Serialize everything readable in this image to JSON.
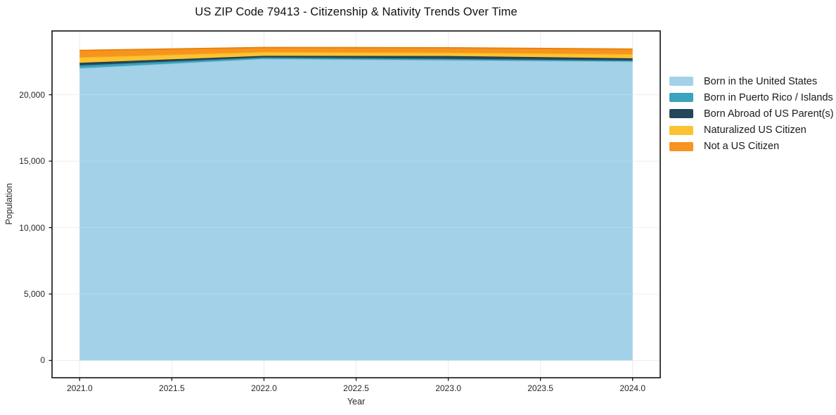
{
  "chart_data": {
    "type": "area",
    "stacked": true,
    "title": "US ZIP Code 79413 - Citizenship & Nativity Trends Over Time",
    "xlabel": "Year",
    "ylabel": "Population",
    "x": [
      2021,
      2022,
      2023,
      2024
    ],
    "series": [
      {
        "name": "Born in the United States",
        "values": [
          22000,
          22700,
          22600,
          22500
        ],
        "color": "#a3d1e8",
        "edge": "#8ec3dd"
      },
      {
        "name": "Born in Puerto Rico / Islands",
        "values": [
          210,
          110,
          105,
          80
        ],
        "color": "#3ba3be",
        "edge": "#2f92ac"
      },
      {
        "name": "Born Abroad of US Parent(s)",
        "values": [
          190,
          120,
          210,
          160
        ],
        "color": "#24475a",
        "edge": "#1b3848"
      },
      {
        "name": "Naturalized US Citizen",
        "values": [
          430,
          300,
          270,
          320
        ],
        "color": "#fdc232",
        "edge": "#f2ae13"
      },
      {
        "name": "Not a US Citizen",
        "values": [
          500,
          320,
          345,
          370
        ],
        "color": "#f7941f",
        "edge": "#e8830d"
      }
    ],
    "x_ticks": {
      "values": [
        2021.0,
        2021.5,
        2022.0,
        2022.5,
        2023.0,
        2023.5,
        2024.0
      ],
      "labels": [
        "2021.0",
        "2021.5",
        "2022.0",
        "2022.5",
        "2023.0",
        "2023.5",
        "2024.0"
      ]
    },
    "y_ticks": {
      "values": [
        0,
        5000,
        10000,
        15000,
        20000
      ],
      "labels": [
        "0",
        "5,000",
        "10,000",
        "15,000",
        "20,000"
      ]
    },
    "xlim": [
      2020.85,
      2024.15
    ],
    "ylim": [
      -1300,
      24800
    ],
    "grid": true,
    "legend_position": "right",
    "colors": {
      "grid": "#ebebeb",
      "spine": "#111111",
      "tick": "#111111",
      "background": "#ffffff"
    }
  }
}
